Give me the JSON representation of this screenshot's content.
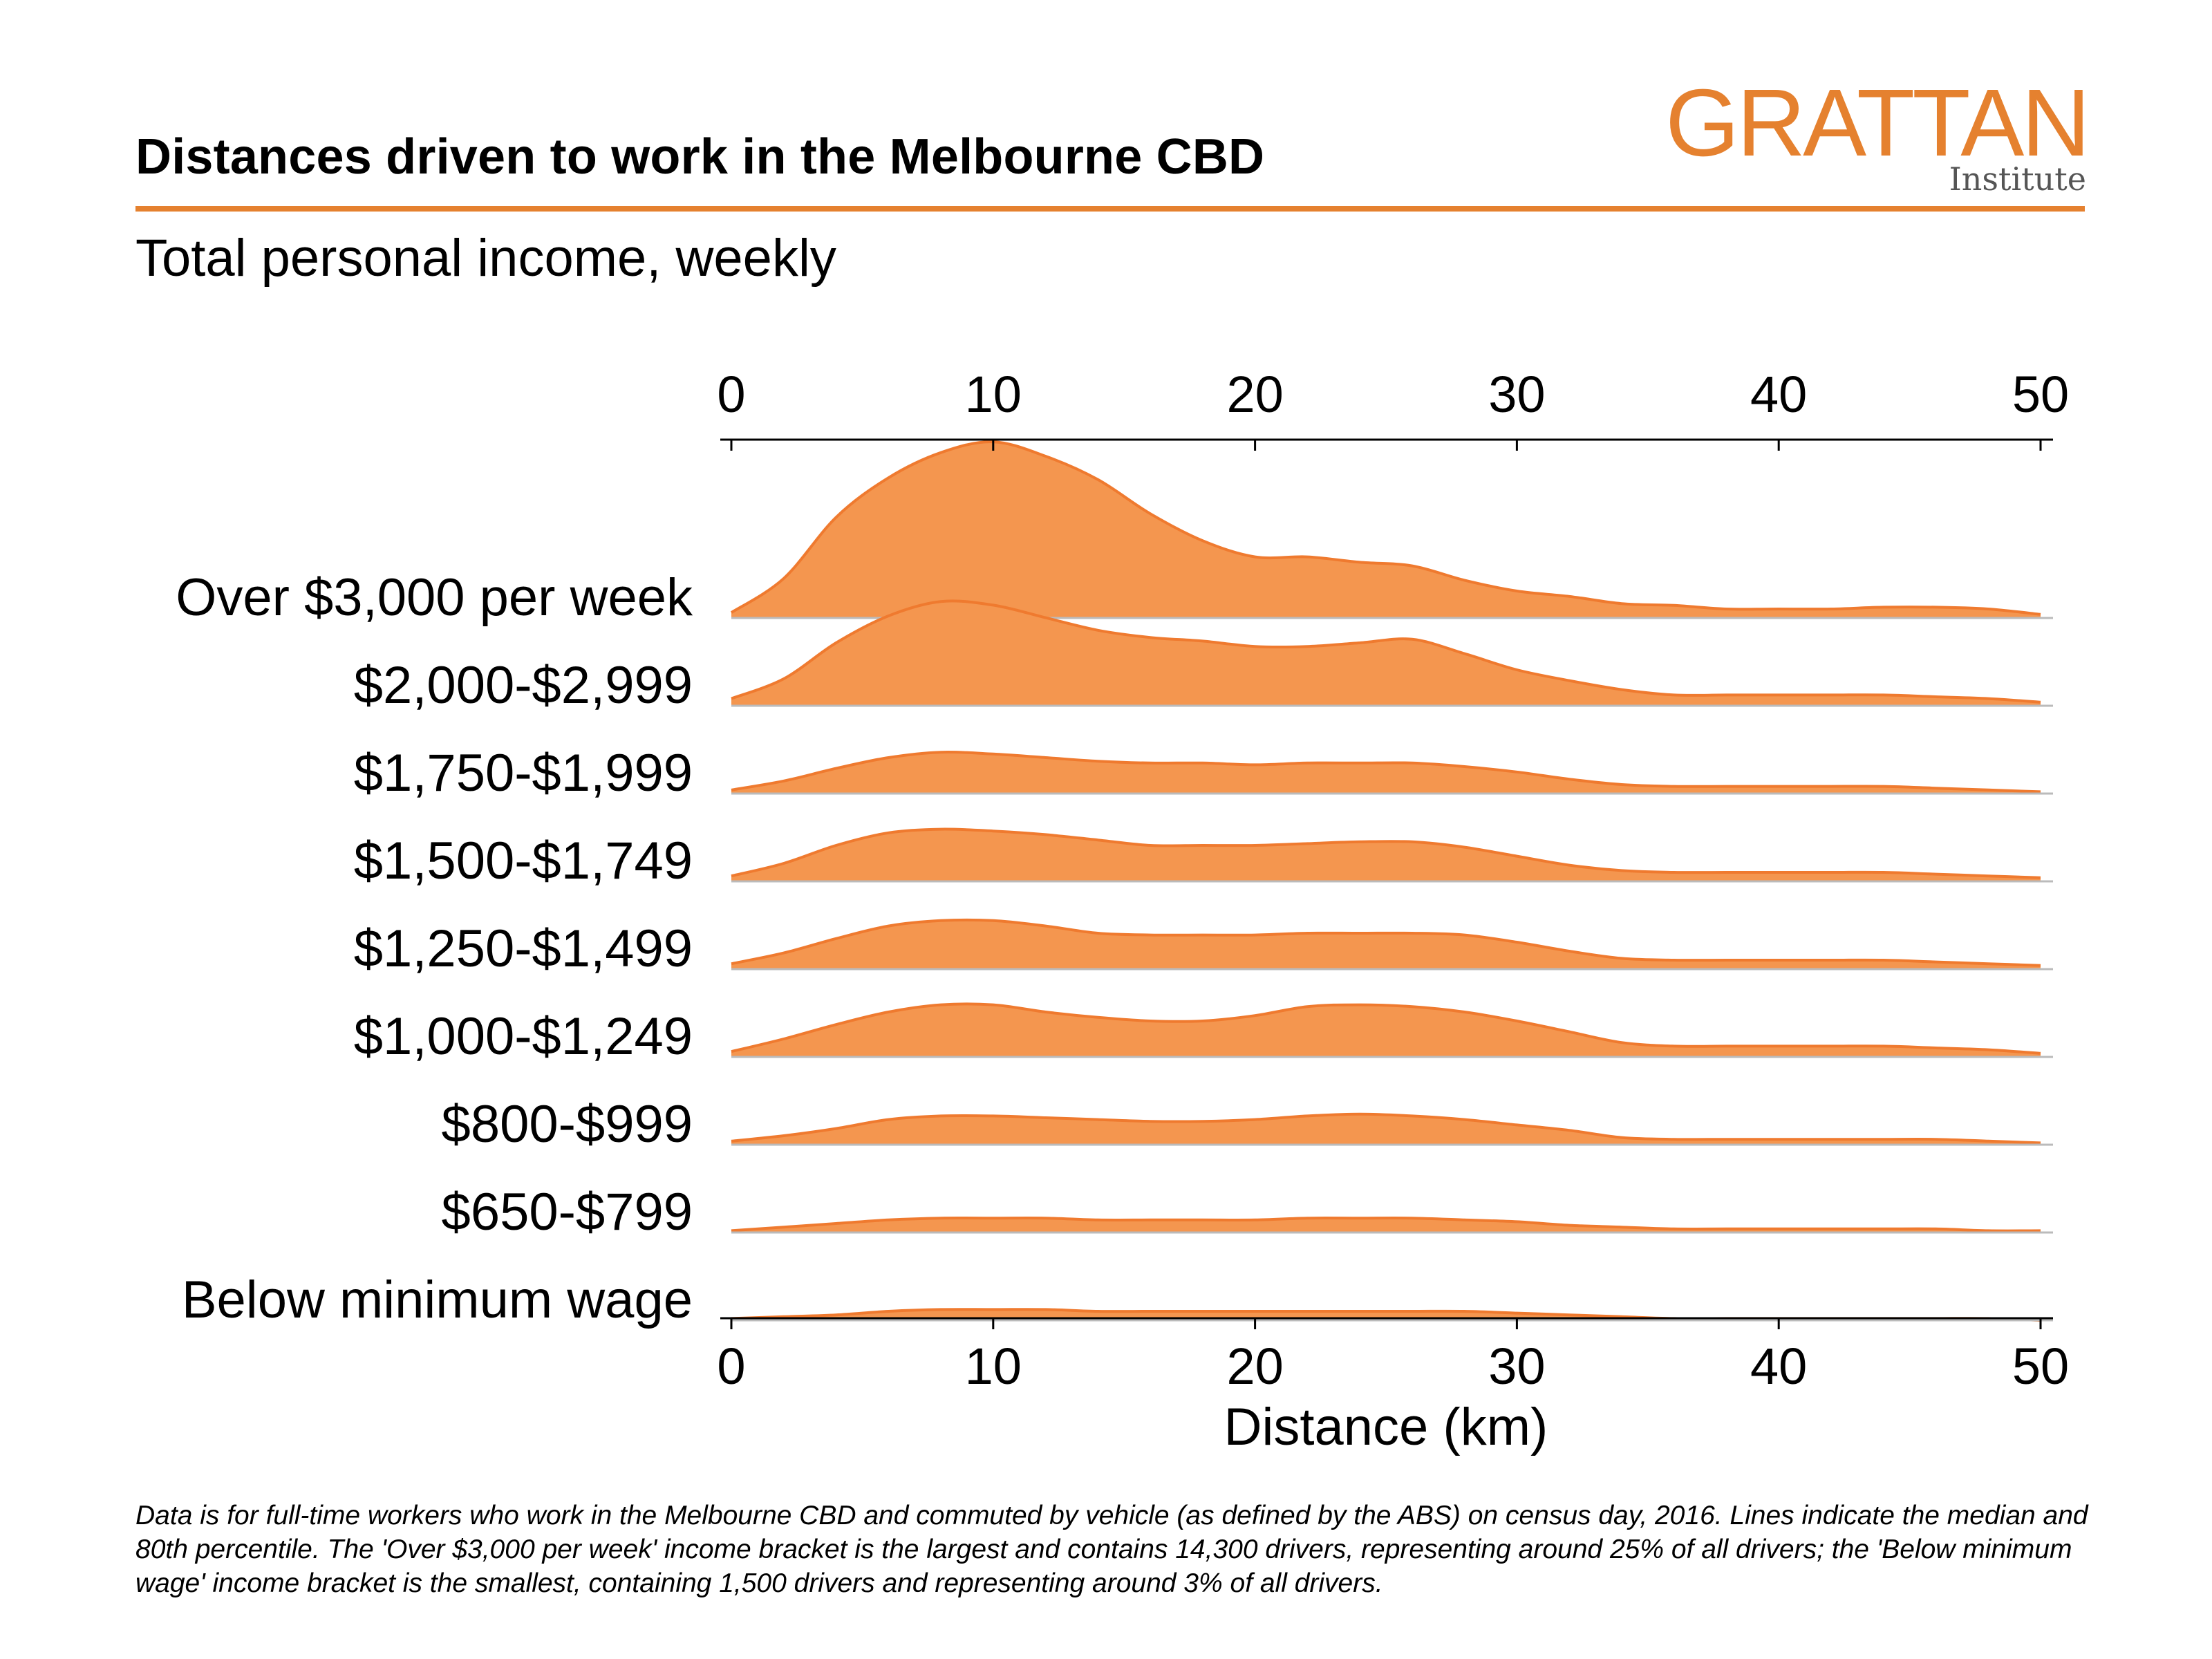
{
  "header": {
    "title": "Distances driven to work in the Melbourne CBD",
    "subtitle": "Total personal income, weekly"
  },
  "logo": {
    "main": "GRATTAN",
    "sub": "Institute"
  },
  "colors": {
    "accent": "#E5812F",
    "fill": "#F4964F",
    "stroke": "#EF7A2F",
    "baseline": "#BBBBBB"
  },
  "footnote": "Data is for full-time workers who work in the Melbourne CBD and commuted by vehicle (as defined by the ABS) on census day, 2016. Lines indicate the median and 80th percentile. The 'Over $3,000 per week' income bracket is the largest and contains 14,300 drivers, representing around 25% of all drivers; the 'Below minimum wage' income bracket is the smallest, containing 1,500 drivers and representing around 3% of all drivers.",
  "chart_data": {
    "type": "area",
    "subtype": "ridgeline",
    "title": "Distances driven to work in the Melbourne CBD",
    "subtitle": "Total personal income, weekly",
    "xlabel": "Distance (km)",
    "ylabel": "",
    "xlim": [
      0,
      50
    ],
    "xticks": [
      0,
      10,
      20,
      30,
      40,
      50
    ],
    "x": [
      0,
      2,
      4,
      6,
      8,
      10,
      12,
      14,
      16,
      18,
      20,
      22,
      24,
      26,
      28,
      30,
      32,
      34,
      36,
      38,
      40,
      42,
      44,
      46,
      48,
      50
    ],
    "series": [
      {
        "name": "Over $3,000 per week",
        "values": [
          0.03,
          0.22,
          0.56,
          0.78,
          0.92,
          0.98,
          0.9,
          0.77,
          0.58,
          0.43,
          0.34,
          0.34,
          0.31,
          0.29,
          0.21,
          0.15,
          0.12,
          0.08,
          0.07,
          0.05,
          0.05,
          0.05,
          0.06,
          0.06,
          0.05,
          0.02
        ]
      },
      {
        "name": "$2,000-$2,999",
        "values": [
          0.04,
          0.15,
          0.35,
          0.5,
          0.58,
          0.56,
          0.49,
          0.42,
          0.38,
          0.36,
          0.33,
          0.33,
          0.35,
          0.37,
          0.29,
          0.2,
          0.14,
          0.09,
          0.06,
          0.06,
          0.06,
          0.06,
          0.06,
          0.05,
          0.04,
          0.02
        ]
      },
      {
        "name": "$1,750-$1,999",
        "values": [
          0.02,
          0.07,
          0.14,
          0.2,
          0.23,
          0.22,
          0.2,
          0.18,
          0.17,
          0.17,
          0.16,
          0.17,
          0.17,
          0.17,
          0.15,
          0.12,
          0.08,
          0.05,
          0.04,
          0.04,
          0.04,
          0.04,
          0.04,
          0.03,
          0.02,
          0.01
        ]
      },
      {
        "name": "$1,500-$1,749",
        "values": [
          0.03,
          0.1,
          0.2,
          0.27,
          0.29,
          0.28,
          0.26,
          0.23,
          0.2,
          0.2,
          0.2,
          0.21,
          0.22,
          0.22,
          0.19,
          0.14,
          0.09,
          0.06,
          0.05,
          0.05,
          0.05,
          0.05,
          0.05,
          0.04,
          0.03,
          0.02
        ]
      },
      {
        "name": "$1,250-$1,499",
        "values": [
          0.03,
          0.09,
          0.17,
          0.24,
          0.27,
          0.27,
          0.24,
          0.2,
          0.19,
          0.19,
          0.19,
          0.2,
          0.2,
          0.2,
          0.19,
          0.15,
          0.1,
          0.06,
          0.05,
          0.05,
          0.05,
          0.05,
          0.05,
          0.04,
          0.03,
          0.02
        ]
      },
      {
        "name": "$1,000-$1,249",
        "values": [
          0.03,
          0.1,
          0.18,
          0.25,
          0.29,
          0.29,
          0.25,
          0.22,
          0.2,
          0.2,
          0.23,
          0.28,
          0.29,
          0.28,
          0.25,
          0.2,
          0.14,
          0.08,
          0.06,
          0.06,
          0.06,
          0.06,
          0.06,
          0.05,
          0.04,
          0.02
        ]
      },
      {
        "name": "$800-$999",
        "values": [
          0.02,
          0.05,
          0.09,
          0.14,
          0.16,
          0.16,
          0.15,
          0.14,
          0.13,
          0.13,
          0.14,
          0.16,
          0.17,
          0.16,
          0.14,
          0.11,
          0.08,
          0.04,
          0.03,
          0.03,
          0.03,
          0.03,
          0.03,
          0.03,
          0.02,
          0.01
        ]
      },
      {
        "name": "$650-$799",
        "values": [
          0.01,
          0.03,
          0.05,
          0.07,
          0.08,
          0.08,
          0.08,
          0.07,
          0.07,
          0.07,
          0.07,
          0.08,
          0.08,
          0.08,
          0.07,
          0.06,
          0.04,
          0.03,
          0.02,
          0.02,
          0.02,
          0.02,
          0.02,
          0.02,
          0.01,
          0.01
        ]
      },
      {
        "name": "Below minimum wage",
        "values": [
          0.01,
          0.02,
          0.03,
          0.05,
          0.06,
          0.06,
          0.06,
          0.05,
          0.05,
          0.05,
          0.05,
          0.05,
          0.05,
          0.05,
          0.05,
          0.04,
          0.03,
          0.02,
          0.01,
          0.01,
          0.01,
          0.01,
          0.01,
          0.01,
          0.01,
          0.0
        ]
      }
    ]
  }
}
